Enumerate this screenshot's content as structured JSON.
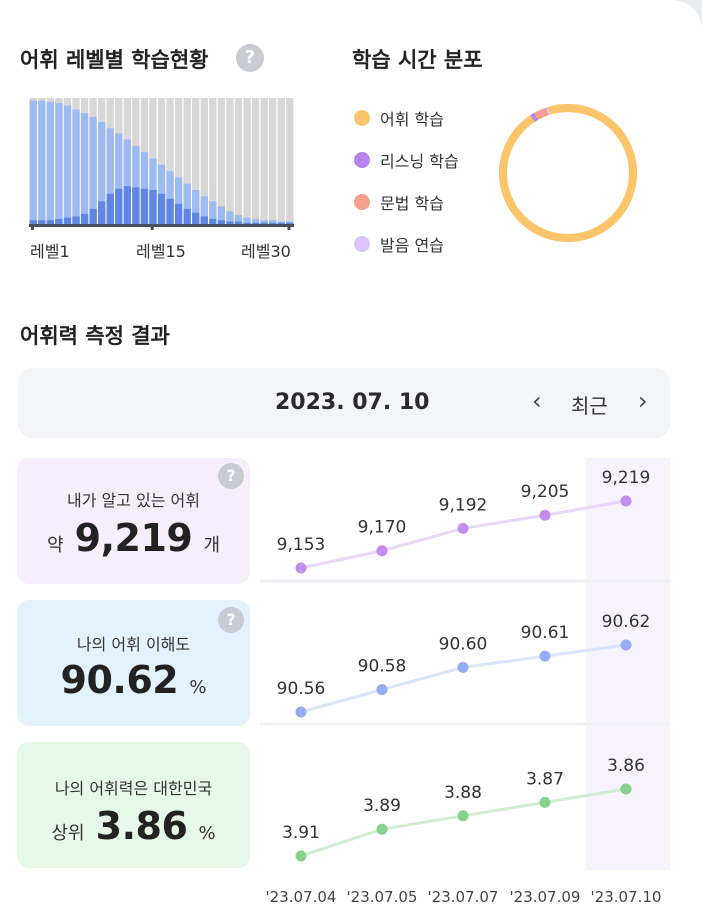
{
  "level_status": {
    "title": "어휘 레벨별 학습현황",
    "help_icon": "?",
    "axis_labels": [
      "레벨1",
      "레벨15",
      "레벨30"
    ],
    "colors": {
      "total": "#9dbbf2",
      "learned": "#5f86e3",
      "background": "#d7d7d7"
    },
    "total": [
      98,
      98,
      97,
      96,
      94,
      91,
      88,
      85,
      81,
      76,
      72,
      67,
      62,
      57,
      52,
      47,
      42,
      37,
      32,
      27,
      22,
      18,
      14,
      10,
      7,
      5,
      4,
      3,
      3,
      2,
      2
    ],
    "learned": [
      3,
      3,
      3,
      4,
      5,
      6,
      8,
      12,
      18,
      24,
      28,
      30,
      29,
      28,
      27,
      24,
      20,
      16,
      12,
      9,
      6,
      4,
      3,
      2,
      2,
      1,
      1,
      1,
      1,
      1,
      1
    ]
  },
  "time_dist": {
    "title": "학습 시간 분포",
    "legend": [
      {
        "label": "어휘 학습",
        "color": "#fdc56b"
      },
      {
        "label": "리스닝 학습",
        "color": "#b485ea"
      },
      {
        "label": "문법 학습",
        "color": "#f5a08c"
      },
      {
        "label": "발음 연습",
        "color": "#dcc3fa"
      }
    ],
    "shares": [
      95.5,
      1.0,
      3.0,
      0.5
    ]
  },
  "measure": {
    "title": "어휘력 측정 결과",
    "date": "2023. 07. 10",
    "nav_label": "최근",
    "prev_icon": "chevron-left-icon",
    "next_icon": "chevron-right-icon",
    "help_icon": "?"
  },
  "cards": [
    {
      "line1": "내가 알고 있는 어휘",
      "prefix": "약",
      "value": "9,219",
      "unit": "개",
      "bg": "#f6edfd"
    },
    {
      "line1": "나의 어휘 이해도",
      "prefix": "",
      "value": "90.62",
      "unit": "%",
      "bg": "#e4f2fd"
    },
    {
      "line1": "나의 어휘력은 대한민국",
      "prefix": "상위",
      "value": "3.86",
      "unit": "%",
      "bg": "#e6f9e9"
    }
  ],
  "chart_data": {
    "type": "line",
    "x": [
      "'23.07.04",
      "'23.07.05",
      "'23.07.07",
      "'23.07.09",
      "'23.07.10"
    ],
    "highlight_index": 4,
    "series": [
      {
        "values": [
          9153,
          9170,
          9192,
          9205,
          9219
        ],
        "labels": [
          "9,153",
          "9,170",
          "9,192",
          "9,205",
          "9,219"
        ],
        "dot": "#c48ef0",
        "line": "#e9d7fa"
      },
      {
        "values": [
          90.56,
          90.58,
          90.6,
          90.61,
          90.62
        ],
        "labels": [
          "90.56",
          "90.58",
          "90.60",
          "90.61",
          "90.62"
        ],
        "dot": "#93aef3",
        "line": "#dbe4fb"
      },
      {
        "values": [
          3.91,
          3.89,
          3.88,
          3.87,
          3.86
        ],
        "labels": [
          "3.91",
          "3.89",
          "3.88",
          "3.87",
          "3.86"
        ],
        "dot": "#86d18c",
        "line": "#cfeed1"
      }
    ]
  }
}
